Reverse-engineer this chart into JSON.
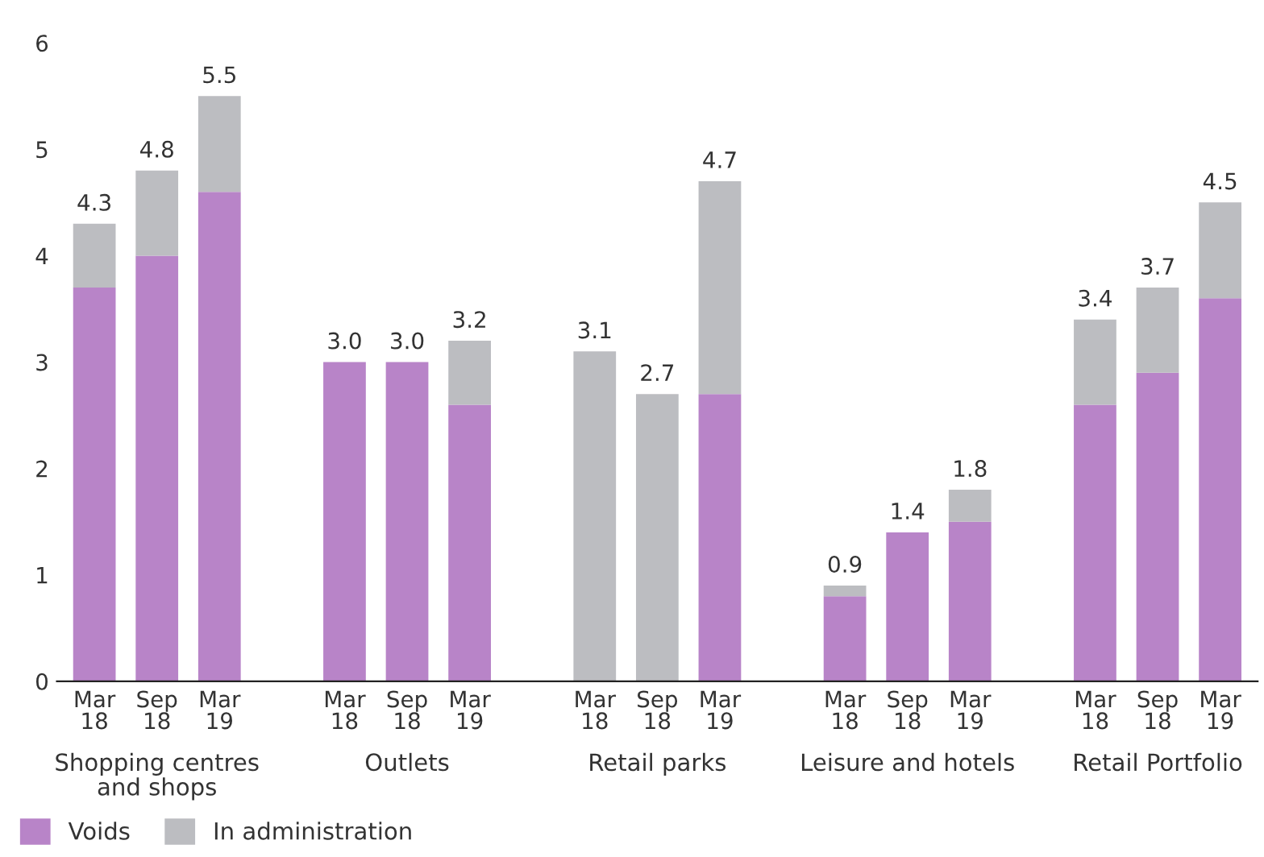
{
  "chart_data": {
    "type": "bar",
    "stacked": true,
    "categories": [
      "Mar\n18",
      "Sep\n18",
      "Mar\n19",
      null,
      "Mar\n18",
      "Sep\n18",
      "Mar\n19",
      null,
      "Mar\n18",
      "Sep\n18",
      "Mar\n19",
      null,
      "Mar\n18",
      "Sep\n18",
      "Mar\n19",
      null,
      "Mar\n18",
      "Sep\n18",
      "Mar\n19"
    ],
    "series": [
      {
        "name": "Voids",
        "color": "#b884c8",
        "values": [
          3.7,
          4.0,
          4.6,
          null,
          3.0,
          3.0,
          2.6,
          null,
          0,
          0,
          2.7,
          null,
          0.8,
          1.4,
          1.5,
          null,
          2.6,
          2.9,
          3.6
        ]
      },
      {
        "name": "In administration",
        "color": "#bcbdc1",
        "values": [
          0.6,
          0.8,
          0.9,
          null,
          0,
          0,
          0.6,
          null,
          3.1,
          2.7,
          2.0,
          null,
          0.1,
          0,
          0.3,
          null,
          0.8,
          0.8,
          0.9
        ]
      }
    ],
    "totals": [
      "4.3",
      "4.8",
      "5.5",
      null,
      "3.0",
      "3.0",
      "3.2",
      null,
      "3.1",
      "2.7",
      "4.7",
      null,
      "0.9",
      "1.4",
      "1.8",
      null,
      "3.4",
      "3.7",
      "4.5"
    ],
    "annotations": [
      "Shopping centres\nand shops",
      "Outlets",
      "Retail parks",
      "Leisure and hotels",
      "Retail Portfolio"
    ],
    "ylim": [
      0,
      6
    ],
    "yticks": [
      0,
      1,
      2,
      3,
      4,
      5,
      6
    ],
    "grid": false,
    "legend": "bottom left"
  }
}
